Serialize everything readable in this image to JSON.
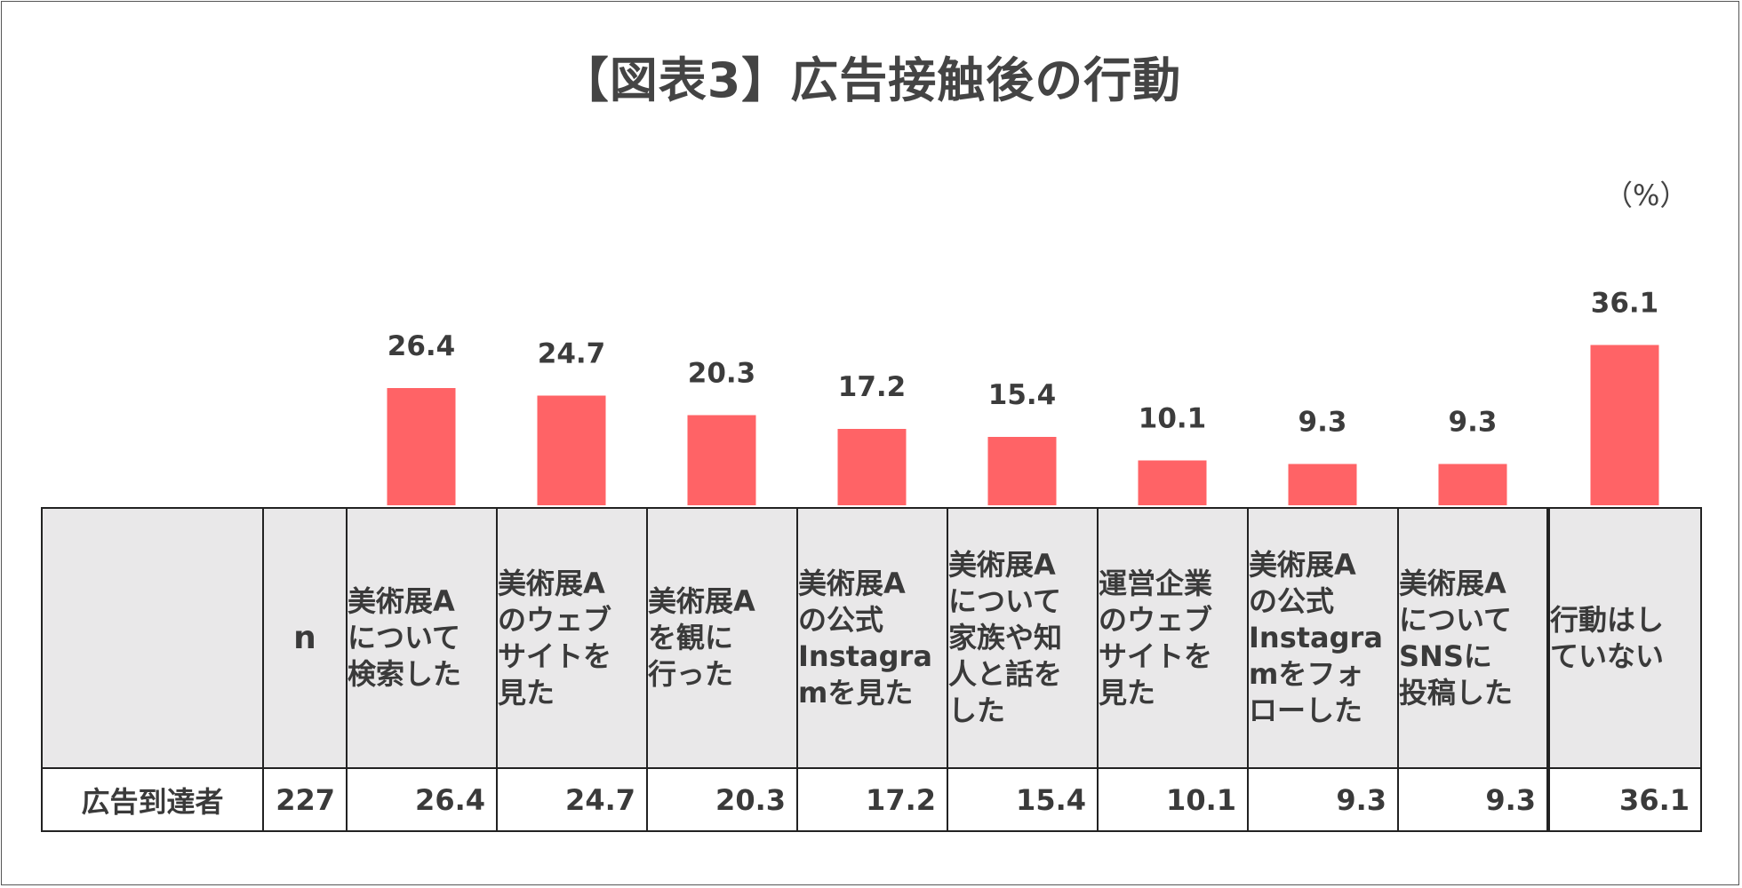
{
  "title": "【図表3】広告接触後の行動",
  "unit_label": "（%）",
  "colors": {
    "bar": "#ff6366",
    "header_bg": "#e9e8e9",
    "highlight_bg": "#fde4e6"
  },
  "chart_data": {
    "type": "bar",
    "title": "【図表3】広告接触後の行動",
    "unit": "（%）",
    "categories": [
      "美術展Aについて検索した",
      "美術展Aのウェブサイトを見た",
      "美術展Aを観に行った",
      "美術展Aの公式Instagramを見た",
      "美術展Aについて家族や知人と話をした",
      "運営企業のウェブサイトを見た",
      "美術展Aの公式Instagramをフォローした",
      "美術展AについてSNSに投稿した",
      "行動はしていない"
    ],
    "values": [
      26.4,
      24.7,
      20.3,
      17.2,
      15.4,
      10.1,
      9.3,
      9.3,
      36.1
    ],
    "value_labels": [
      "26.4",
      "24.7",
      "20.3",
      "17.2",
      "15.4",
      "10.1",
      "9.3",
      "9.3",
      "36.1"
    ],
    "ylim": [
      0,
      40
    ]
  },
  "table": {
    "n_header": "n",
    "headers": [
      "美術展A\nについて\n検索した",
      "美術展A\nのウェブ\nサイトを\n見た",
      "美術展A\nを観に\n行った",
      "美術展A\nの公式\nInstagra\nmを見た",
      "美術展A\nについて\n家族や知\n人と話を\nした",
      "運営企業\nのウェブ\nサイトを\n見た",
      "美術展A\nの公式\nInstagra\nmをフォ\nローした",
      "美術展A\nについて\nSNSに\n投稿した",
      "行動はし\nていない"
    ],
    "row_label": "広告到達者",
    "n_value": "227",
    "row_values": [
      "26.4",
      "24.7",
      "20.3",
      "17.2",
      "15.4",
      "10.1",
      "9.3",
      "9.3",
      "36.1"
    ]
  }
}
